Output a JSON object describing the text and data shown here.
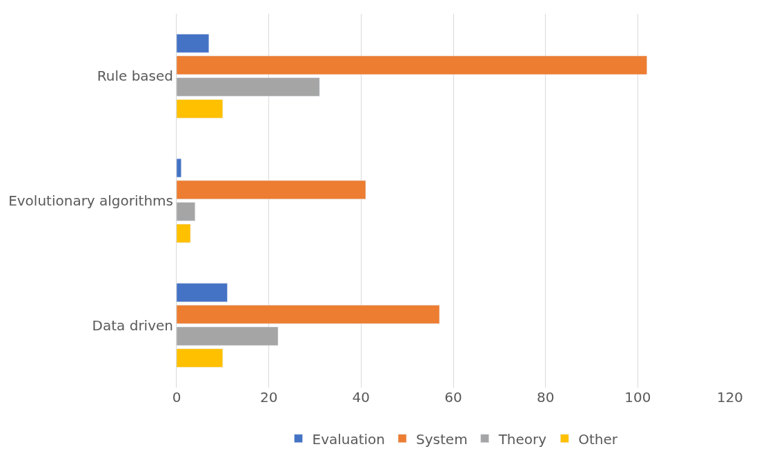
{
  "chart_data": {
    "type": "bar",
    "orientation": "horizontal",
    "categories": [
      "Rule based",
      "Evolutionary algorithms",
      "Data driven"
    ],
    "series": [
      {
        "name": "Evaluation",
        "color": "#4472c4",
        "values": [
          7,
          1,
          11
        ]
      },
      {
        "name": "System",
        "color": "#ed7d31",
        "values": [
          102,
          41,
          57
        ]
      },
      {
        "name": "Theory",
        "color": "#a5a5a5",
        "values": [
          31,
          4,
          22
        ]
      },
      {
        "name": "Other",
        "color": "#ffc000",
        "values": [
          10,
          3,
          10
        ]
      }
    ],
    "xlim": [
      0,
      120
    ],
    "xticks": [
      0,
      20,
      40,
      60,
      80,
      100,
      120
    ],
    "grid": "x",
    "legend": "bottom"
  }
}
